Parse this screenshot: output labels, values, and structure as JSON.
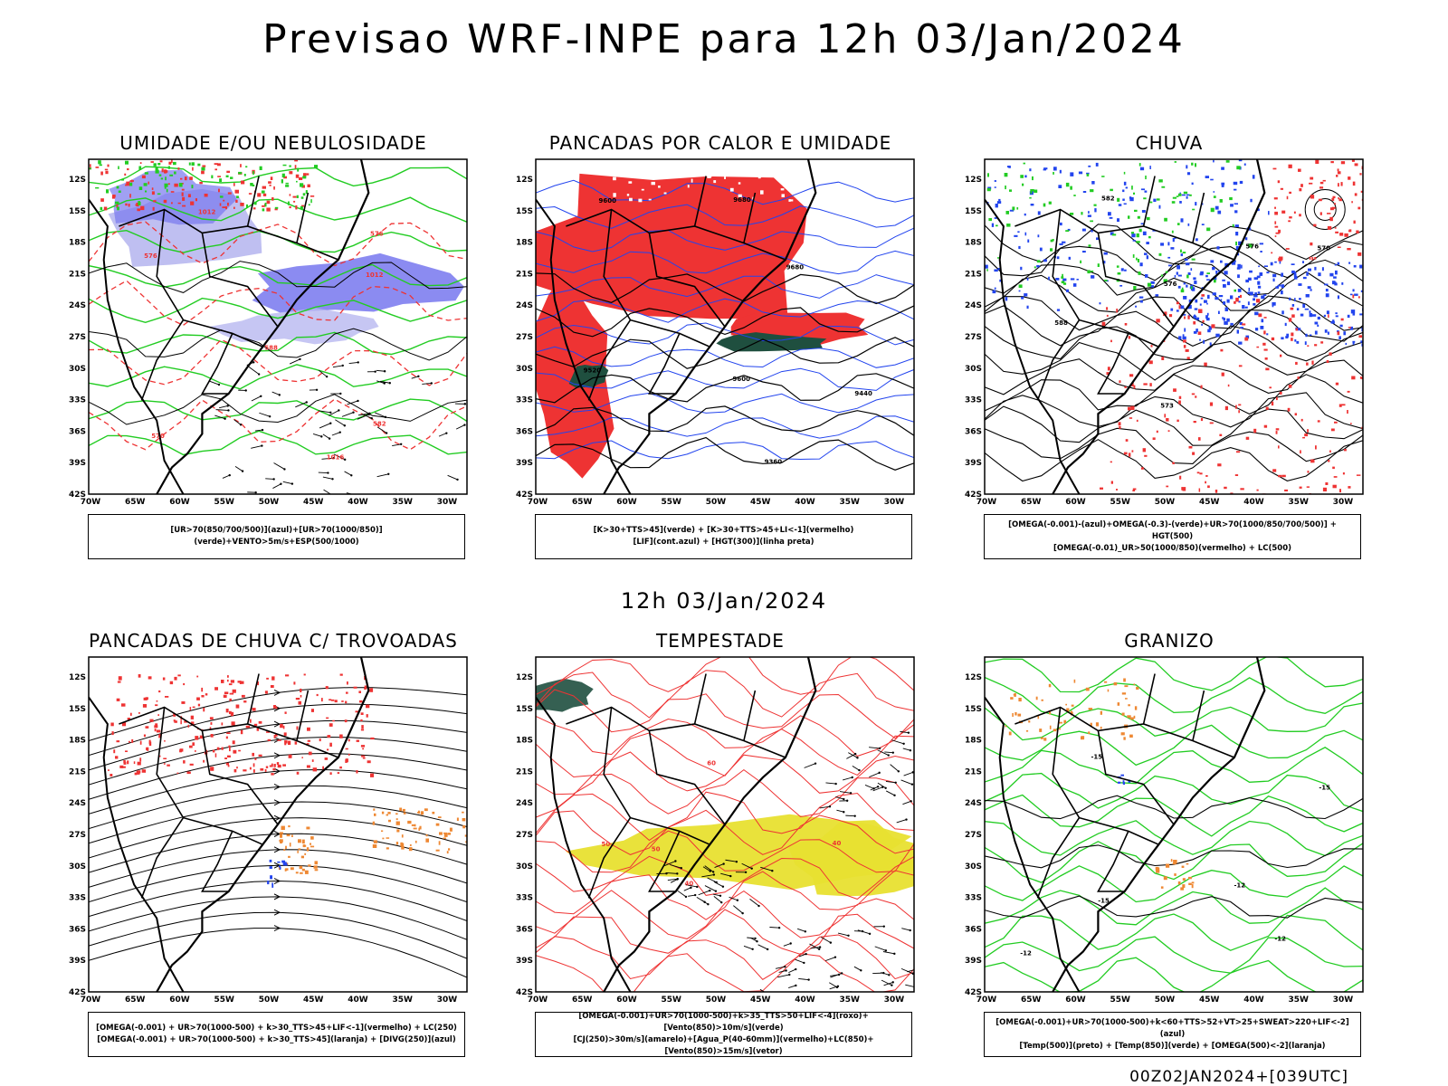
{
  "title": "Previsao WRF-INPE  para 12h 03/Jan/2024",
  "mid_label": "12h 03/Jan/2024",
  "footer": "00Z02JAN2024+[039UTC]",
  "axes": {
    "lon_labels": [
      "70W",
      "65W",
      "60W",
      "55W",
      "50W",
      "45W",
      "40W",
      "35W",
      "30W"
    ],
    "lat_labels": [
      "12S",
      "15S",
      "18S",
      "21S",
      "24S",
      "27S",
      "30S",
      "33S",
      "36S",
      "39S",
      "42S"
    ]
  },
  "colors": {
    "blue_fill": "#7777ee",
    "light_blue": "#b8b8f0",
    "red": "#ee3333",
    "green": "#22cc22",
    "dark_green": "#1f4f3f",
    "yellow": "#e8e030",
    "orange": "#ee8833",
    "blue_line": "#2244ee",
    "black": "#000000"
  },
  "panels": [
    {
      "title": "UMIDADE E/OU NEBULOSIDADE",
      "legend": [
        "[UR>70(850/700/500)](azul)+[UR>70(1000/850)](verde)+VENTO>5m/s+ESP(500/1000)"
      ],
      "contour_labels": [
        "1012",
        "1012",
        "1016",
        "576",
        "576",
        "570",
        "582",
        "588"
      ]
    },
    {
      "title": "PANCADAS POR CALOR E UMIDADE",
      "legend": [
        "[K>30+TTS>45](verde)  +  [K>30+TTS>45+LI<-1](vermelho)",
        "[LIF](cont.azul)  +  [HGT(300)](linha preta)"
      ],
      "contour_labels": [
        "9680",
        "9600",
        "9520",
        "9440",
        "9360",
        "9680",
        "9600"
      ]
    },
    {
      "title": "CHUVA",
      "legend": [
        "[OMEGA(-0.001)-(azul)+OMEGA(-0.3)-(verde)+UR>70(1000/850/700/500)]  +  HGT(500)",
        "[OMEGA(-0.01)_UR>50(1000/850)(vermelho)  +  LC(500)"
      ],
      "contour_labels": [
        "588",
        "582",
        "576",
        "576",
        "573",
        "570"
      ]
    },
    {
      "title": "PANCADAS DE CHUVA C/ TROVOADAS",
      "legend": [
        "[OMEGA(-0.001)  +  UR>70(1000-500)  +  k>30_TTS>45+LIF<-1](vermelho)  +  LC(250)",
        "[OMEGA(-0.001)  +  UR>70(1000-500)  +  k>30_TTS>45](laranja)  +  [DIVG(250)](azul)"
      ],
      "contour_labels": []
    },
    {
      "title": "TEMPESTADE",
      "legend": [
        "[OMEGA(-0.001)+UR>70(1000-500)+k>35_TTS>50+LIF<-4](roxo)+[Vento(850)>10m/s](verde)",
        "[CJ(250)>30m/s](amarelo)+[Agua_P(40-60mm)](vermelho)+LC(850)+[Vento(850)>15m/s](vetor)"
      ],
      "contour_labels": [
        "40",
        "50",
        "40",
        "60",
        "50"
      ]
    },
    {
      "title": "GRANIZO",
      "legend": [
        "[OMEGA(-0.001)+UR>70(1000-500)+k<60+TTS>52+VT>25+SWEAT>220+LIF<-2](azul)",
        "[Temp(500)](preto)  +  [Temp(850)](verde)  +  [OMEGA(500)<-2](laranja)"
      ],
      "contour_labels": [
        "-12",
        "-12",
        "-15",
        "-15",
        "-15",
        "-12"
      ]
    }
  ]
}
